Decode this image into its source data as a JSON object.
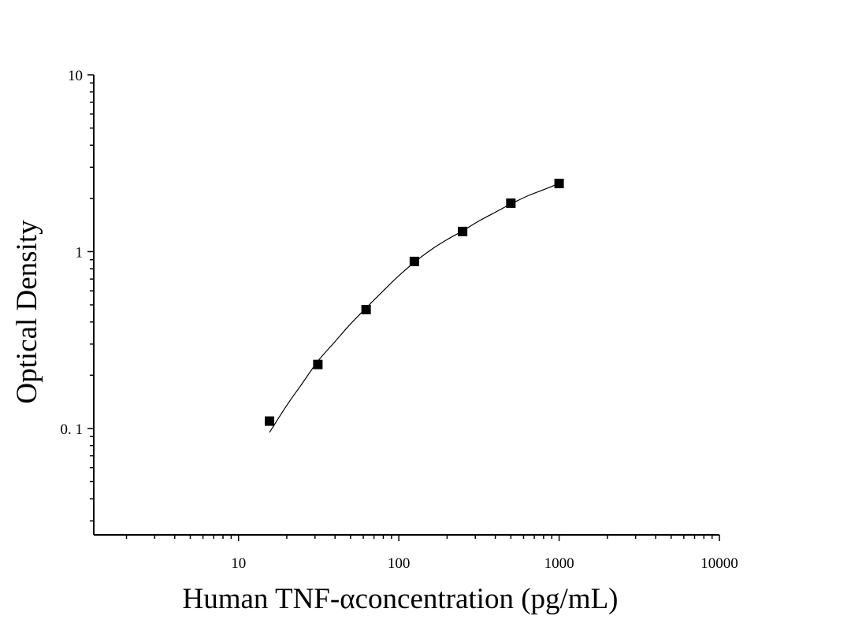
{
  "chart_data": {
    "type": "scatter",
    "xlabel": "Human TNF-αconcentration (pg/mL)",
    "ylabel": "Optical Density",
    "x_scale": "log",
    "y_scale": "log",
    "xlim": [
      1.25,
      10000
    ],
    "ylim": [
      0.025,
      10
    ],
    "x_ticks": [
      10,
      100,
      1000,
      10000
    ],
    "x_tick_labels": [
      "10",
      "100",
      "1000",
      "10000"
    ],
    "y_ticks": [
      0.1,
      1,
      10
    ],
    "y_tick_labels": [
      "0. 1",
      "1",
      "10"
    ],
    "grid": false,
    "legend": "none",
    "series": [
      {
        "marker": "square",
        "x": [
          15.6,
          31.25,
          62.5,
          125,
          250,
          500,
          1000
        ],
        "y": [
          0.11,
          0.23,
          0.47,
          0.88,
          1.3,
          1.88,
          2.43
        ]
      }
    ],
    "fit_curve": {
      "style": "smooth-line",
      "x": [
        15.6,
        20,
        25,
        31.25,
        40,
        50,
        62.5,
        80,
        100,
        125,
        160,
        200,
        250,
        320,
        400,
        500,
        640,
        800,
        1000
      ],
      "y": [
        0.095,
        0.135,
        0.18,
        0.24,
        0.31,
        0.39,
        0.48,
        0.6,
        0.73,
        0.87,
        1.03,
        1.17,
        1.31,
        1.5,
        1.67,
        1.86,
        2.07,
        2.24,
        2.43
      ]
    }
  }
}
